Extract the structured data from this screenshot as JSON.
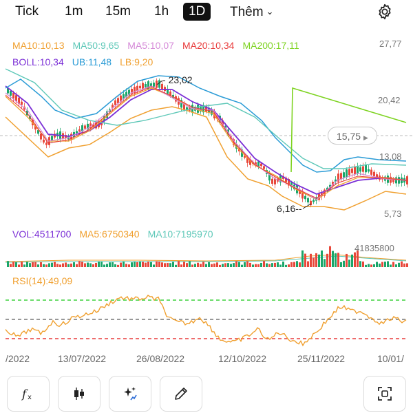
{
  "tabs": [
    {
      "label": "Tick",
      "active": false
    },
    {
      "label": "1m",
      "active": false
    },
    {
      "label": "15m",
      "active": false
    },
    {
      "label": "1h",
      "active": false
    },
    {
      "label": "1D",
      "active": true
    }
  ],
  "more_label": "Thêm",
  "main_legend": {
    "ma10": {
      "text": "MA10:10,13",
      "color": "#f0a030"
    },
    "ma50": {
      "text": "MA50:9,65",
      "color": "#5ec8b8"
    },
    "ma5": {
      "text": "MA5:10,07",
      "color": "#d58ad8"
    },
    "ma20": {
      "text": "MA20:10,34",
      "color": "#e83b3b"
    },
    "ma200": {
      "text": "MA200:17,11",
      "color": "#7ed321"
    },
    "boll": {
      "text": "BOLL:10,34",
      "color": "#7b2fd6"
    },
    "ub": {
      "text": "UB:11,48",
      "color": "#2a9bd6"
    },
    "lb": {
      "text": "LB:9,20",
      "color": "#f0a030"
    }
  },
  "price_axis": [
    "27,77",
    "20,42",
    "13,08",
    "5,73"
  ],
  "current_price": "15,75",
  "high_marker": "23,02",
  "low_marker": "6,16",
  "vol_legend": {
    "vol": {
      "text": "VOL:4511700",
      "color": "#7b2fd6"
    },
    "ma5": {
      "text": "MA5:6750340",
      "color": "#f0a030"
    },
    "ma10": {
      "text": "MA10:7195970",
      "color": "#5ec8b8"
    }
  },
  "vol_axis_max": "41835800",
  "rsi_legend": {
    "text": "RSI(14):49,09",
    "color": "#f0a030"
  },
  "date_axis": [
    "/2022",
    "13/07/2022",
    "26/08/2022",
    "12/10/2022",
    "25/11/2022",
    "10/01/"
  ],
  "colors": {
    "up": "#1aa66a",
    "down": "#e8473a",
    "rsi_upper": "#3ad13a",
    "rsi_mid": "#777777",
    "rsi_lower": "#e83b3b"
  },
  "toolbar": [
    "fx-icon",
    "candles-icon",
    "ai-sparkle-icon",
    "pencil-icon",
    "fullscreen-icon"
  ]
}
